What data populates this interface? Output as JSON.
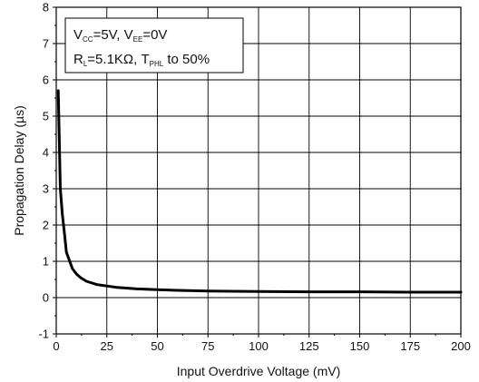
{
  "chart_data": {
    "type": "line",
    "xlabel": "Input Overdrive Voltage (mV)",
    "ylabel": "Propagation Delay (µs)",
    "xlim": [
      0,
      200
    ],
    "ylim": [
      -1,
      8
    ],
    "xticks": [
      "0",
      "25",
      "50",
      "75",
      "100",
      "125",
      "150",
      "175",
      "200"
    ],
    "yticks": [
      "-1",
      "0",
      "1",
      "2",
      "3",
      "4",
      "5",
      "6",
      "7",
      "8"
    ],
    "grid": true,
    "legend_position": "top-left",
    "annotation": {
      "line1": {
        "a": "V",
        "a_sub": "CC",
        "b": "=5V, V",
        "b_sub": "EE",
        "c": "=0V"
      },
      "line2": {
        "a": "R",
        "a_sub": "L",
        "b": "=5.1KΩ, T",
        "b_sub": "PHL",
        "c": " to 50%"
      }
    },
    "series": [
      {
        "x": [
          1,
          2,
          3,
          4,
          5,
          6,
          8,
          10,
          12,
          15,
          20,
          25,
          30,
          40,
          50,
          60,
          75,
          100,
          125,
          150,
          175,
          200
        ],
        "y": [
          5.7,
          3.0,
          2.3,
          1.8,
          1.25,
          1.1,
          0.8,
          0.65,
          0.55,
          0.45,
          0.36,
          0.32,
          0.28,
          0.24,
          0.22,
          0.2,
          0.18,
          0.17,
          0.16,
          0.16,
          0.15,
          0.15
        ]
      }
    ]
  }
}
